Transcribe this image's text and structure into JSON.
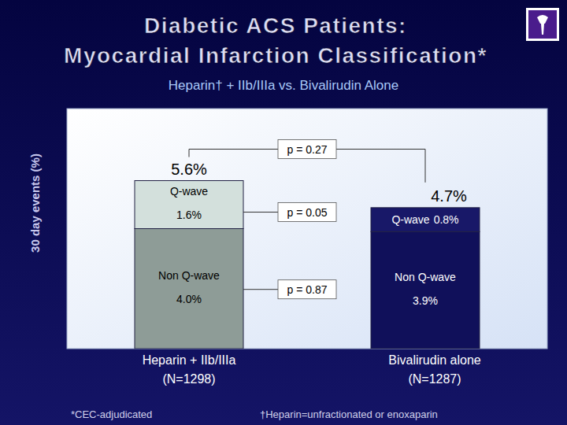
{
  "chart_data": {
    "type": "bar",
    "title": "Diabetic ACS Patients:\nMyocardial Infarction Classification*",
    "subtitle": "Heparin† + IIb/IIIa vs. Bivalirudin Alone",
    "y_label": "30 day events (%)",
    "categories": [
      "Heparin + IIb/IIIa\n(N=1298)",
      "Bivalirudin alone\n(N=1287)"
    ],
    "series": [
      {
        "name": "Non Q-wave",
        "values": [
          4.0,
          3.9
        ],
        "value_labels": [
          "4.0%",
          "3.9%"
        ],
        "colors": [
          "#8e9c97",
          "#10105a"
        ],
        "p_value": "p = 0.87"
      },
      {
        "name": "Q-wave",
        "values": [
          1.6,
          0.8
        ],
        "value_labels": [
          "1.6%",
          "0.8%"
        ],
        "colors": [
          "#d3e0dc",
          "#181868"
        ],
        "p_value": "p = 0.05"
      }
    ],
    "totals": [
      5.6,
      4.7
    ],
    "total_labels": [
      "5.6%",
      "4.7%"
    ],
    "total_p_value": "p = 0.27",
    "footnotes": [
      "*CEC-adjudicated",
      "†Heparin=unfractionated or enoxaparin"
    ],
    "stacked": true,
    "data_labels": true,
    "grid": false,
    "tick_labels": false,
    "ylim": [
      0,
      8
    ],
    "yticks": []
  }
}
